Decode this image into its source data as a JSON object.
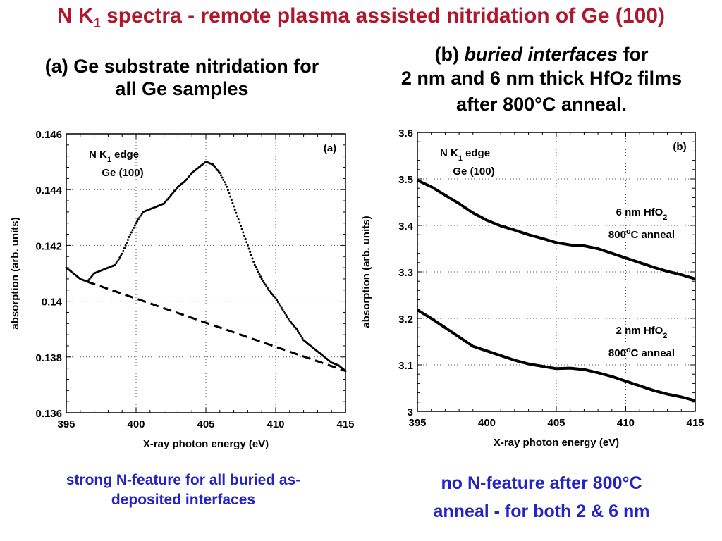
{
  "slide": {
    "title_main": "N K",
    "title_sub": "1",
    "title_rest": " spectra - remote plasma assisted nitridation of Ge (100)",
    "left_heading_line1": "(a) Ge substrate nitridation for",
    "left_heading_line2": "all Ge samples",
    "right_heading_prefix": "(b) ",
    "right_heading_italic": "buried interfaces",
    "right_heading_suffix": " for",
    "right_heading_line2a": "2 nm and 6 nm thick HfO",
    "right_heading_line2b": "2",
    "right_heading_line2c": " films",
    "right_heading_line3": "after 800°C anneal.",
    "left_caption_line1": "strong N-feature for all buried as-",
    "left_caption_line2": "deposited interfaces",
    "right_caption_line1": "no N-feature after 800°C",
    "right_caption_line2": "anneal -  for both 2 & 6 nm"
  },
  "colors": {
    "title": "#b0172c",
    "caption": "#2323c8",
    "ink": "#000000"
  },
  "chart_data": [
    {
      "type": "line",
      "panel_label": "(a)",
      "annotation_line1_main": "N K",
      "annotation_line1_sub": "1",
      "annotation_line1_rest": " edge",
      "annotation_line2": "Ge (100)",
      "xlabel": "X-ray photon energy (eV)",
      "ylabel": "absorption  (arb. units)",
      "xlim": [
        395,
        415
      ],
      "ylim": [
        0.136,
        0.146
      ],
      "xticks": [
        "395",
        "400",
        "405",
        "410",
        "415"
      ],
      "yticks": [
        "0.136",
        "0.138",
        "0.14",
        "0.142",
        "0.144",
        "0.146"
      ],
      "grid": "dotted",
      "series": [
        {
          "style": "dotted-points",
          "x": [
            395,
            395.5,
            396,
            396.5,
            397,
            397.5,
            398,
            398.5,
            399,
            399.5,
            400,
            400.5,
            401,
            401.5,
            402,
            402.5,
            403,
            403.5,
            404,
            404.5,
            405,
            405.5,
            406,
            406.5,
            407,
            407.5,
            408,
            408.5,
            409,
            409.5,
            410,
            410.5,
            411,
            411.5,
            412,
            412.5,
            413,
            413.5,
            414,
            414.5,
            415
          ],
          "y": [
            0.1412,
            0.141,
            0.1408,
            0.1407,
            0.141,
            0.1411,
            0.1412,
            0.1413,
            0.1417,
            0.1423,
            0.1428,
            0.1432,
            0.1433,
            0.1434,
            0.1435,
            0.1438,
            0.1441,
            0.1443,
            0.1446,
            0.1448,
            0.145,
            0.1449,
            0.1446,
            0.1441,
            0.1434,
            0.1427,
            0.142,
            0.1413,
            0.1408,
            0.1404,
            0.1401,
            0.1397,
            0.1393,
            0.139,
            0.1386,
            0.1384,
            0.1382,
            0.138,
            0.1378,
            0.1377,
            0.1375
          ]
        },
        {
          "style": "dashed",
          "x": [
            396.5,
            415
          ],
          "y": [
            0.1407,
            0.1375
          ]
        }
      ]
    },
    {
      "type": "line",
      "panel_label": "(b)",
      "annotation_line1_main": "N K",
      "annotation_line1_sub": "1",
      "annotation_line1_rest": " edge",
      "annotation_line2": "Ge (100)",
      "xlabel": "X-ray photon energy (eV)",
      "ylabel": "absorption  (arb. units)",
      "xlim": [
        395,
        415
      ],
      "ylim": [
        3,
        3.6
      ],
      "xticks": [
        "395",
        "400",
        "405",
        "410",
        "415"
      ],
      "yticks": [
        "3",
        "3.1",
        "3.2",
        "3.3",
        "3.4",
        "3.5",
        "3.6"
      ],
      "grid": "dotted",
      "series": [
        {
          "label_line1_main": "6 nm HfO",
          "label_line1_sub": "2",
          "label_line2_main": "800",
          "label_line2_sup": "o",
          "label_line2_rest": "C anneal",
          "x": [
            395,
            396,
            397,
            398,
            399,
            400,
            401,
            402,
            403,
            404,
            405,
            406,
            407,
            408,
            409,
            410,
            411,
            412,
            413,
            414,
            415
          ],
          "y": [
            3.497,
            3.483,
            3.465,
            3.447,
            3.427,
            3.411,
            3.399,
            3.39,
            3.38,
            3.372,
            3.363,
            3.358,
            3.356,
            3.35,
            3.34,
            3.33,
            3.32,
            3.31,
            3.301,
            3.294,
            3.285
          ]
        },
        {
          "label_line1_main": "2 nm HfO",
          "label_line1_sub": "2",
          "label_line2_main": "800",
          "label_line2_sup": "o",
          "label_line2_rest": "C anneal",
          "x": [
            395,
            396,
            397,
            398,
            399,
            400,
            401,
            402,
            403,
            404,
            405,
            406,
            407,
            408,
            409,
            410,
            411,
            412,
            413,
            414,
            415
          ],
          "y": [
            3.218,
            3.2,
            3.18,
            3.16,
            3.14,
            3.13,
            3.12,
            3.11,
            3.102,
            3.097,
            3.092,
            3.093,
            3.09,
            3.083,
            3.075,
            3.065,
            3.055,
            3.045,
            3.037,
            3.031,
            3.023
          ]
        }
      ]
    }
  ]
}
